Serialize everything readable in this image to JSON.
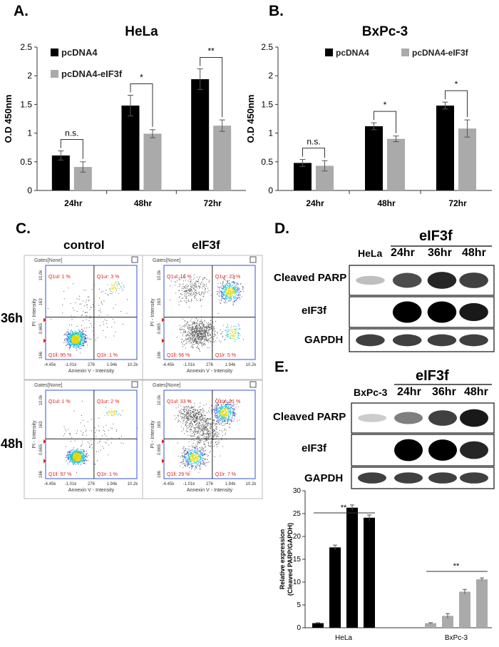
{
  "panels": {
    "A": "A.",
    "B": "B.",
    "C": "C.",
    "D": "D.",
    "E": "E."
  },
  "chart_data": [
    {
      "type": "bar",
      "id": "A",
      "title": "HeLa",
      "ylabel": "O.D 450nm",
      "categories": [
        "24hr",
        "48hr",
        "72hr"
      ],
      "ylim": [
        0,
        2.5
      ],
      "yticks": [
        "0",
        "0.5",
        "1",
        "1.5",
        "2",
        "2.5"
      ],
      "series": [
        {
          "name": "pcDNA4",
          "color": "#000000",
          "values": [
            0.61,
            1.48,
            1.94
          ],
          "errors": [
            0.08,
            0.18,
            0.18
          ]
        },
        {
          "name": "pcDNA4-eIF3f",
          "color": "#aaaaaa",
          "values": [
            0.41,
            0.99,
            1.13
          ],
          "errors": [
            0.09,
            0.07,
            0.1
          ]
        }
      ],
      "significance": [
        "n.s.",
        "*",
        "**"
      ]
    },
    {
      "type": "bar",
      "id": "B",
      "title": "BxPc-3",
      "ylabel": "O.D 450nm",
      "categories": [
        "24hr",
        "48hr",
        "72hr"
      ],
      "ylim": [
        0,
        2.5
      ],
      "yticks": [
        "0",
        "0.5",
        "1",
        "1.5",
        "2",
        "2.5"
      ],
      "series": [
        {
          "name": "pcDNA4",
          "color": "#000000",
          "values": [
            0.48,
            1.12,
            1.48
          ],
          "errors": [
            0.06,
            0.06,
            0.06
          ]
        },
        {
          "name": "pcDNA4-eIF3f",
          "color": "#aaaaaa",
          "values": [
            0.43,
            0.9,
            1.08
          ],
          "errors": [
            0.09,
            0.05,
            0.15
          ]
        }
      ],
      "significance": [
        "n.s.",
        "*",
        "*"
      ]
    },
    {
      "type": "bar",
      "id": "E-quant",
      "ylabel": "Relative expression\n(Cleaved PARP/GAPDH)",
      "ylabel_lines": [
        "Relative expression",
        "(Cleaved PARP/GAPDH)"
      ],
      "ylim": [
        0,
        30
      ],
      "yticks": [
        "0",
        "5",
        "10",
        "15",
        "20",
        "25",
        "30"
      ],
      "groups": [
        {
          "name": "HeLa",
          "color": "#000000",
          "values": [
            1.0,
            17.6,
            26.3,
            24.1
          ],
          "errors": [
            0.1,
            0.5,
            0.6,
            0.6
          ],
          "significance": "**"
        },
        {
          "name": "BxPc-3",
          "color": "#aaaaaa",
          "values": [
            1.0,
            2.6,
            7.9,
            10.6
          ],
          "errors": [
            0.1,
            0.5,
            0.5,
            0.3
          ],
          "significance": "**"
        }
      ]
    }
  ],
  "flow": {
    "col_labels": [
      "control",
      "eIF3f"
    ],
    "row_labels": [
      "36h",
      "48h"
    ],
    "gates_label": "Gates[None]",
    "x_axis_label": "Annexin V - Intensity",
    "y_axis_label": "PI - Intensity",
    "x_ticks": [
      "-4.45k",
      "-1.01k",
      "276",
      "1.94k",
      "10.2k"
    ],
    "y_ticks": [
      "10.0k",
      "163",
      "0.665",
      "166"
    ],
    "plots": [
      {
        "ul": "Q1ul: 1 %",
        "ur": "Q1ur: 3 %",
        "ll": "Q1ll: 95 %",
        "lr": "Q1lr: 1 %"
      },
      {
        "ul": "Q1ul: 16 %",
        "ur": "Q1ur: 23 %",
        "ll": "Q1ll: 56 %",
        "lr": "Q1lr: 5 %"
      },
      {
        "ul": "Q1ul: 1 %",
        "ur": "Q1ur: 2 %",
        "ll": "Q1ll: 97 %",
        "lr": "Q1lr: 1 %"
      },
      {
        "ul": "Q1ul: 33 %",
        "ur": "Q1ur: 31 %",
        "ll": "Q1ll: 29 %",
        "lr": "Q1lr: 7 %"
      }
    ]
  },
  "blot_D": {
    "group_label": "eIF3f",
    "lanes": [
      "HeLa",
      "24hr",
      "36hr",
      "48hr"
    ],
    "rows": [
      "Cleaved PARP",
      "eIF3f",
      "GAPDH"
    ]
  },
  "blot_E": {
    "group_label": "eIF3f",
    "lanes": [
      "BxPc-3",
      "24hr",
      "36hr",
      "48hr"
    ],
    "rows": [
      "Cleaved PARP",
      "eIF3f",
      "GAPDH"
    ]
  }
}
